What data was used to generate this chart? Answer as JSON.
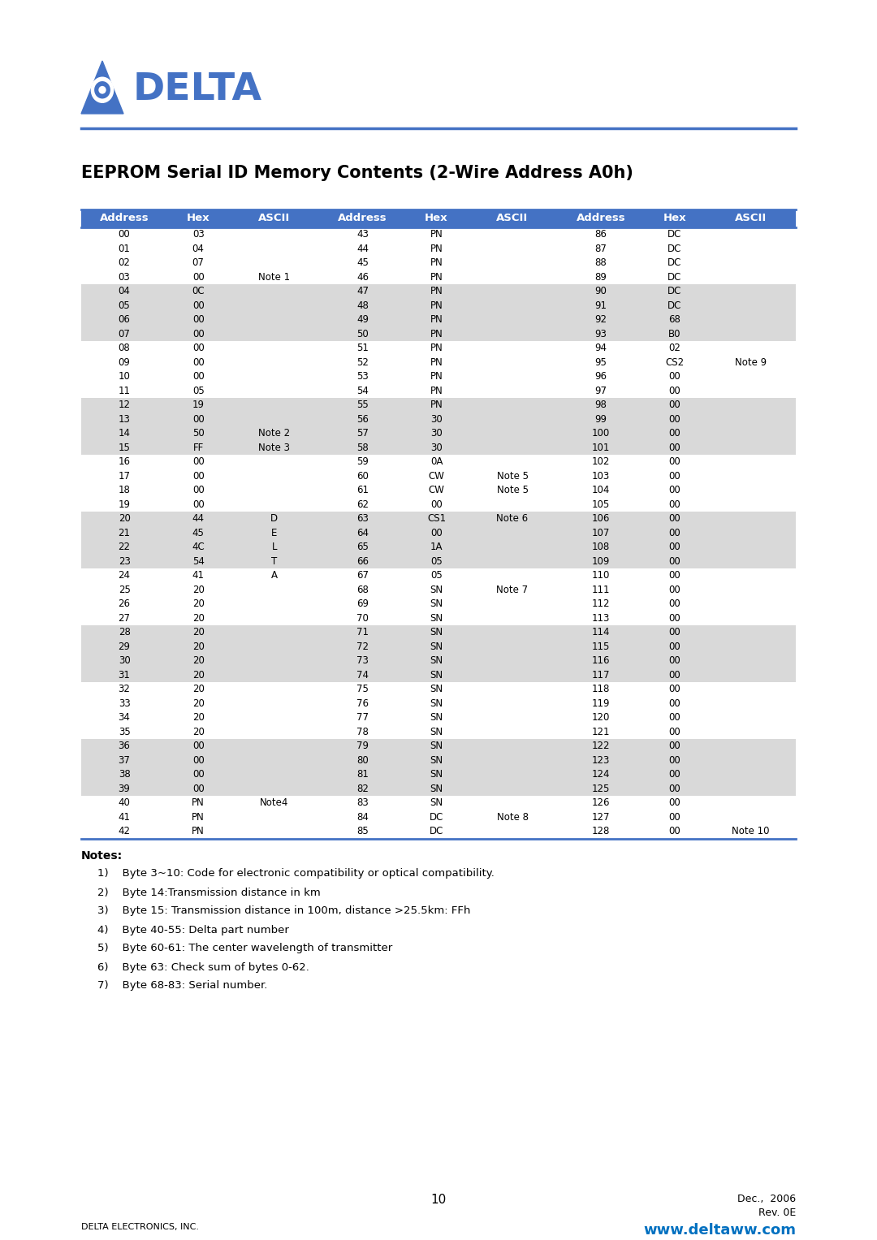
{
  "title": "EEPROM Serial ID Memory Contents (2-Wire Address A0h)",
  "header": [
    "Address",
    "Hex",
    "ASCII",
    "Address",
    "Hex",
    "ASCII",
    "Address",
    "Hex",
    "ASCII"
  ],
  "rows": [
    [
      "00",
      "03",
      "",
      "43",
      "PN",
      "",
      "86",
      "DC",
      ""
    ],
    [
      "01",
      "04",
      "",
      "44",
      "PN",
      "",
      "87",
      "DC",
      ""
    ],
    [
      "02",
      "07",
      "",
      "45",
      "PN",
      "",
      "88",
      "DC",
      ""
    ],
    [
      "03",
      "00",
      "Note 1",
      "46",
      "PN",
      "",
      "89",
      "DC",
      ""
    ],
    [
      "04",
      "0C",
      "",
      "47",
      "PN",
      "",
      "90",
      "DC",
      ""
    ],
    [
      "05",
      "00",
      "",
      "48",
      "PN",
      "",
      "91",
      "DC",
      ""
    ],
    [
      "06",
      "00",
      "",
      "49",
      "PN",
      "",
      "92",
      "68",
      ""
    ],
    [
      "07",
      "00",
      "",
      "50",
      "PN",
      "",
      "93",
      "B0",
      ""
    ],
    [
      "08",
      "00",
      "",
      "51",
      "PN",
      "",
      "94",
      "02",
      ""
    ],
    [
      "09",
      "00",
      "",
      "52",
      "PN",
      "",
      "95",
      "CS2",
      "Note 9"
    ],
    [
      "10",
      "00",
      "",
      "53",
      "PN",
      "",
      "96",
      "00",
      ""
    ],
    [
      "11",
      "05",
      "",
      "54",
      "PN",
      "",
      "97",
      "00",
      ""
    ],
    [
      "12",
      "19",
      "",
      "55",
      "PN",
      "",
      "98",
      "00",
      ""
    ],
    [
      "13",
      "00",
      "",
      "56",
      "30",
      "",
      "99",
      "00",
      ""
    ],
    [
      "14",
      "50",
      "Note 2",
      "57",
      "30",
      "",
      "100",
      "00",
      ""
    ],
    [
      "15",
      "FF",
      "Note 3",
      "58",
      "30",
      "",
      "101",
      "00",
      ""
    ],
    [
      "16",
      "00",
      "",
      "59",
      "0A",
      "",
      "102",
      "00",
      ""
    ],
    [
      "17",
      "00",
      "",
      "60",
      "CW",
      "Note 5",
      "103",
      "00",
      ""
    ],
    [
      "18",
      "00",
      "",
      "61",
      "CW",
      "Note 5",
      "104",
      "00",
      ""
    ],
    [
      "19",
      "00",
      "",
      "62",
      "00",
      "",
      "105",
      "00",
      ""
    ],
    [
      "20",
      "44",
      "D",
      "63",
      "CS1",
      "Note 6",
      "106",
      "00",
      ""
    ],
    [
      "21",
      "45",
      "E",
      "64",
      "00",
      "",
      "107",
      "00",
      ""
    ],
    [
      "22",
      "4C",
      "L",
      "65",
      "1A",
      "",
      "108",
      "00",
      ""
    ],
    [
      "23",
      "54",
      "T",
      "66",
      "05",
      "",
      "109",
      "00",
      ""
    ],
    [
      "24",
      "41",
      "A",
      "67",
      "05",
      "",
      "110",
      "00",
      ""
    ],
    [
      "25",
      "20",
      "",
      "68",
      "SN",
      "Note 7",
      "111",
      "00",
      ""
    ],
    [
      "26",
      "20",
      "",
      "69",
      "SN",
      "",
      "112",
      "00",
      ""
    ],
    [
      "27",
      "20",
      "",
      "70",
      "SN",
      "",
      "113",
      "00",
      ""
    ],
    [
      "28",
      "20",
      "",
      "71",
      "SN",
      "",
      "114",
      "00",
      ""
    ],
    [
      "29",
      "20",
      "",
      "72",
      "SN",
      "",
      "115",
      "00",
      ""
    ],
    [
      "30",
      "20",
      "",
      "73",
      "SN",
      "",
      "116",
      "00",
      ""
    ],
    [
      "31",
      "20",
      "",
      "74",
      "SN",
      "",
      "117",
      "00",
      ""
    ],
    [
      "32",
      "20",
      "",
      "75",
      "SN",
      "",
      "118",
      "00",
      ""
    ],
    [
      "33",
      "20",
      "",
      "76",
      "SN",
      "",
      "119",
      "00",
      ""
    ],
    [
      "34",
      "20",
      "",
      "77",
      "SN",
      "",
      "120",
      "00",
      ""
    ],
    [
      "35",
      "20",
      "",
      "78",
      "SN",
      "",
      "121",
      "00",
      ""
    ],
    [
      "36",
      "00",
      "",
      "79",
      "SN",
      "",
      "122",
      "00",
      ""
    ],
    [
      "37",
      "00",
      "",
      "80",
      "SN",
      "",
      "123",
      "00",
      ""
    ],
    [
      "38",
      "00",
      "",
      "81",
      "SN",
      "",
      "124",
      "00",
      ""
    ],
    [
      "39",
      "00",
      "",
      "82",
      "SN",
      "",
      "125",
      "00",
      ""
    ],
    [
      "40",
      "PN",
      "Note4",
      "83",
      "SN",
      "",
      "126",
      "00",
      ""
    ],
    [
      "41",
      "PN",
      "",
      "84",
      "DC",
      "Note 8",
      "127",
      "00",
      ""
    ],
    [
      "42",
      "PN",
      "",
      "85",
      "DC",
      "",
      "128",
      "00",
      "Note 10"
    ]
  ],
  "shaded_rows": [
    4,
    5,
    6,
    7,
    12,
    13,
    14,
    15,
    20,
    21,
    22,
    23,
    28,
    29,
    30,
    31,
    36,
    37,
    38,
    39
  ],
  "notes": [
    "1)    Byte 3~10: Code for electronic compatibility or optical compatibility.",
    "2)    Byte 14:Transmission distance in km",
    "3)    Byte 15: Transmission distance in 100m, distance >25.5km: FFh",
    "4)    Byte 40-55: Delta part number",
    "5)    Byte 60-61: The center wavelength of transmitter",
    "6)    Byte 63: Check sum of bytes 0-62.",
    "7)    Byte 68-83: Serial number."
  ],
  "footer_left": "DELTA ELECTRONICS, INC.",
  "footer_center": "10",
  "footer_right_line1": "Dec.,  2006",
  "footer_right_line2": "Rev. 0E",
  "footer_website": "www.deltaww.com",
  "header_bg": "#4472C4",
  "header_text_color": "#FFFFFF",
  "shaded_bg": "#D9D9D9",
  "white_bg": "#FFFFFF",
  "body_text_color": "#000000",
  "title_color": "#000000",
  "blue_line_color": "#4472C4",
  "website_color": "#0070C0"
}
